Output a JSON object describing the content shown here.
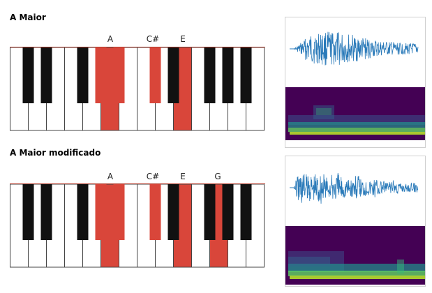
{
  "sections": [
    {
      "title": "A Maior",
      "labels": [
        "A",
        "C#",
        "E"
      ],
      "highlighted_white": [
        5,
        9
      ],
      "highlighted_black": [
        3,
        4,
        5
      ]
    },
    {
      "title": "A Maior modificado",
      "labels": [
        "A",
        "C#",
        "E",
        "G"
      ],
      "highlighted_white": [
        5,
        9,
        11
      ],
      "highlighted_black": [
        3,
        4,
        5
      ]
    }
  ],
  "colors": {
    "highlight": "#d9463a",
    "black_key": "#111111",
    "waveform": "#2a7ab9",
    "spec_bg": "#440154"
  }
}
